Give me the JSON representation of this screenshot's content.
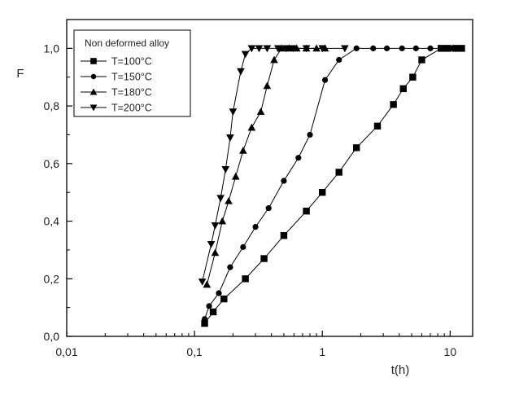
{
  "chart_data": {
    "type": "scatter",
    "title": "",
    "xlabel": "t(h)",
    "ylabel": "F",
    "x_scale": "log",
    "xlim": [
      0.01,
      15
    ],
    "ylim": [
      0,
      1.1
    ],
    "x_ticks": [
      0.01,
      0.1,
      1,
      10
    ],
    "x_tick_labels": [
      "0,01",
      "0,1",
      "1",
      "10"
    ],
    "y_ticks": [
      0,
      0.2,
      0.4,
      0.6,
      0.8,
      1.0
    ],
    "y_tick_labels": [
      "0,0",
      "0,2",
      "0,4",
      "0,6",
      "0,8",
      "1,0"
    ],
    "grid": false,
    "legend": {
      "title": "Non deformed alloy",
      "placement": "top-left"
    },
    "series": [
      {
        "name": "T=100°C",
        "marker": "square",
        "x": [
          0.12,
          0.14,
          0.17,
          0.25,
          0.35,
          0.5,
          0.75,
          1.0,
          1.35,
          1.85,
          2.7,
          3.6,
          4.3,
          5.1,
          6.0,
          8.5,
          9.6,
          11.0,
          12.3
        ],
        "y": [
          0.045,
          0.085,
          0.13,
          0.2,
          0.27,
          0.35,
          0.435,
          0.5,
          0.57,
          0.655,
          0.73,
          0.805,
          0.86,
          0.9,
          0.96,
          1.0,
          1.0,
          1.0,
          1.0
        ]
      },
      {
        "name": "T=150°C",
        "marker": "circle",
        "x": [
          0.12,
          0.13,
          0.155,
          0.19,
          0.24,
          0.3,
          0.38,
          0.5,
          0.65,
          0.8,
          1.05,
          1.35,
          1.85,
          2.5,
          3.2,
          4.2,
          5.4,
          7.0,
          9.0,
          10.5
        ],
        "y": [
          0.06,
          0.105,
          0.15,
          0.24,
          0.31,
          0.38,
          0.445,
          0.54,
          0.62,
          0.7,
          0.89,
          0.96,
          1.0,
          1.0,
          1.0,
          1.0,
          1.0,
          1.0,
          1.0,
          1.0
        ]
      },
      {
        "name": "T=180°C",
        "marker": "triangle-up",
        "x": [
          0.125,
          0.145,
          0.165,
          0.185,
          0.21,
          0.24,
          0.28,
          0.33,
          0.37,
          0.42,
          0.48,
          0.55,
          0.63,
          0.75,
          0.9,
          1.05
        ],
        "y": [
          0.18,
          0.29,
          0.4,
          0.47,
          0.555,
          0.645,
          0.725,
          0.78,
          0.87,
          0.96,
          1.0,
          1.0,
          1.0,
          1.0,
          1.0,
          1.0
        ]
      },
      {
        "name": "T=200°C",
        "marker": "triangle-down",
        "x": [
          0.115,
          0.135,
          0.145,
          0.16,
          0.175,
          0.19,
          0.2,
          0.23,
          0.25,
          0.28,
          0.32,
          0.37,
          0.45,
          0.52,
          0.59,
          0.75,
          1.0,
          1.5
        ],
        "y": [
          0.19,
          0.32,
          0.385,
          0.48,
          0.58,
          0.69,
          0.78,
          0.92,
          0.98,
          1.0,
          1.0,
          1.0,
          1.0,
          1.0,
          1.0,
          1.0,
          1.0,
          1.0
        ]
      }
    ]
  }
}
